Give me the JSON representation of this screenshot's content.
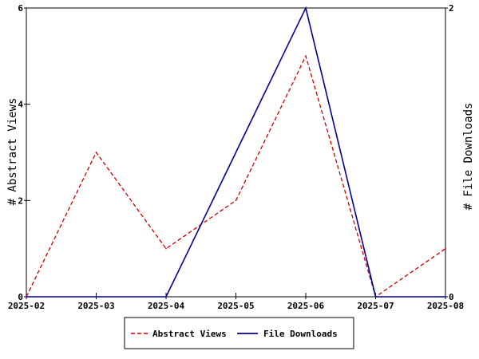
{
  "chart_data": {
    "type": "line",
    "title": "",
    "x": [
      "2025-02",
      "2025-03",
      "2025-04",
      "2025-05",
      "2025-06",
      "2025-07",
      "2025-08"
    ],
    "ylabel_left": "# Abstract Views",
    "ylabel_right": "# File Downloads",
    "ylim_left": [
      0,
      6
    ],
    "ylim_right": [
      0,
      2
    ],
    "yticks_left": [
      "0",
      "2",
      "4",
      "6"
    ],
    "yticks_right": [
      "0",
      "2"
    ],
    "grid": false,
    "legend_position": "bottom",
    "series": [
      {
        "name": "Abstract Views",
        "axis": "left",
        "values": [
          0,
          3,
          1,
          2,
          5,
          0,
          1
        ],
        "color": "#cc0000",
        "dash": "dashed"
      },
      {
        "name": "File Downloads",
        "axis": "right",
        "values": [
          0,
          0,
          0,
          1,
          2,
          0,
          0
        ],
        "color": "#000099",
        "dash": "solid"
      }
    ]
  }
}
